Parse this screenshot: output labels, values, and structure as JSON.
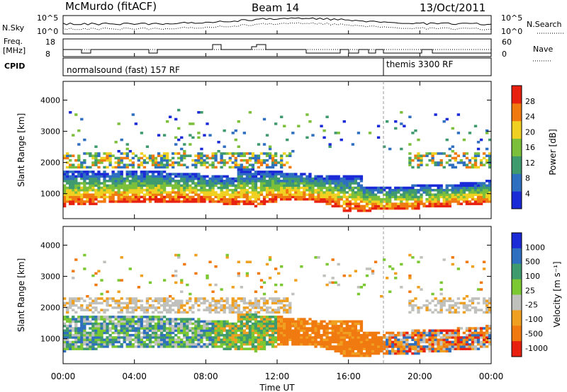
{
  "header": {
    "station": "McMurdo (fitACF)",
    "beam": "Beam 14",
    "date": "13/Oct/2011"
  },
  "top_panels": {
    "nsky_label": "N.Sky",
    "nsky_tick_top": "10^5",
    "nsky_tick_bottom": "10^0",
    "nsearch_label": "N.Search",
    "nsearch_tick_top": "10^5",
    "nsearch_tick_bottom": "10^0",
    "freq_label_1": "Freq.",
    "freq_label_2": "[MHz]",
    "freq_tick_top": "18",
    "freq_tick_bottom": "8",
    "nave_label": "Nave",
    "nave_tick_top": "60",
    "nave_tick_bottom": "0",
    "cpid_label": "CPID",
    "cpid_mode_1": "normalsound (fast) 157 RF",
    "cpid_mode_2": "themis 3300 RF"
  },
  "chart_data": [
    {
      "type": "heatmap",
      "name": "power",
      "ylabel": "Slant Range [km]",
      "ylim": [
        200,
        4600
      ],
      "yticks": [
        "1000",
        "2000",
        "3000",
        "4000"
      ],
      "colorbar_label": "Power [dB]",
      "colorbar_ticks": [
        "4",
        "8",
        "12",
        "16",
        "20",
        "24",
        "28"
      ],
      "colors": [
        "#1a2ad6",
        "#2f6fc0",
        "#3f9a6e",
        "#7bbf3a",
        "#f0d020",
        "#f07a10",
        "#e82010"
      ]
    },
    {
      "type": "heatmap",
      "name": "velocity",
      "ylabel": "Slant Range [km]",
      "ylim": [
        200,
        4600
      ],
      "yticks": [
        "1000",
        "2000",
        "3000",
        "4000"
      ],
      "colorbar_label": "Velocity [m s⁻¹]",
      "colorbar_ticks": [
        "1000",
        "500",
        "100",
        "25",
        "-25",
        "-100",
        "-500",
        "-1000"
      ],
      "colors": [
        "#1a2ad6",
        "#2f6fc0",
        "#3f9a6e",
        "#7bc832",
        "#c0c0bc",
        "#f0a020",
        "#f07a10",
        "#e82010"
      ],
      "xlabel": "Time UT",
      "xticks": [
        "00:00",
        "04:00",
        "08:00",
        "12:00",
        "16:00",
        "20:00",
        "00:00"
      ]
    }
  ]
}
